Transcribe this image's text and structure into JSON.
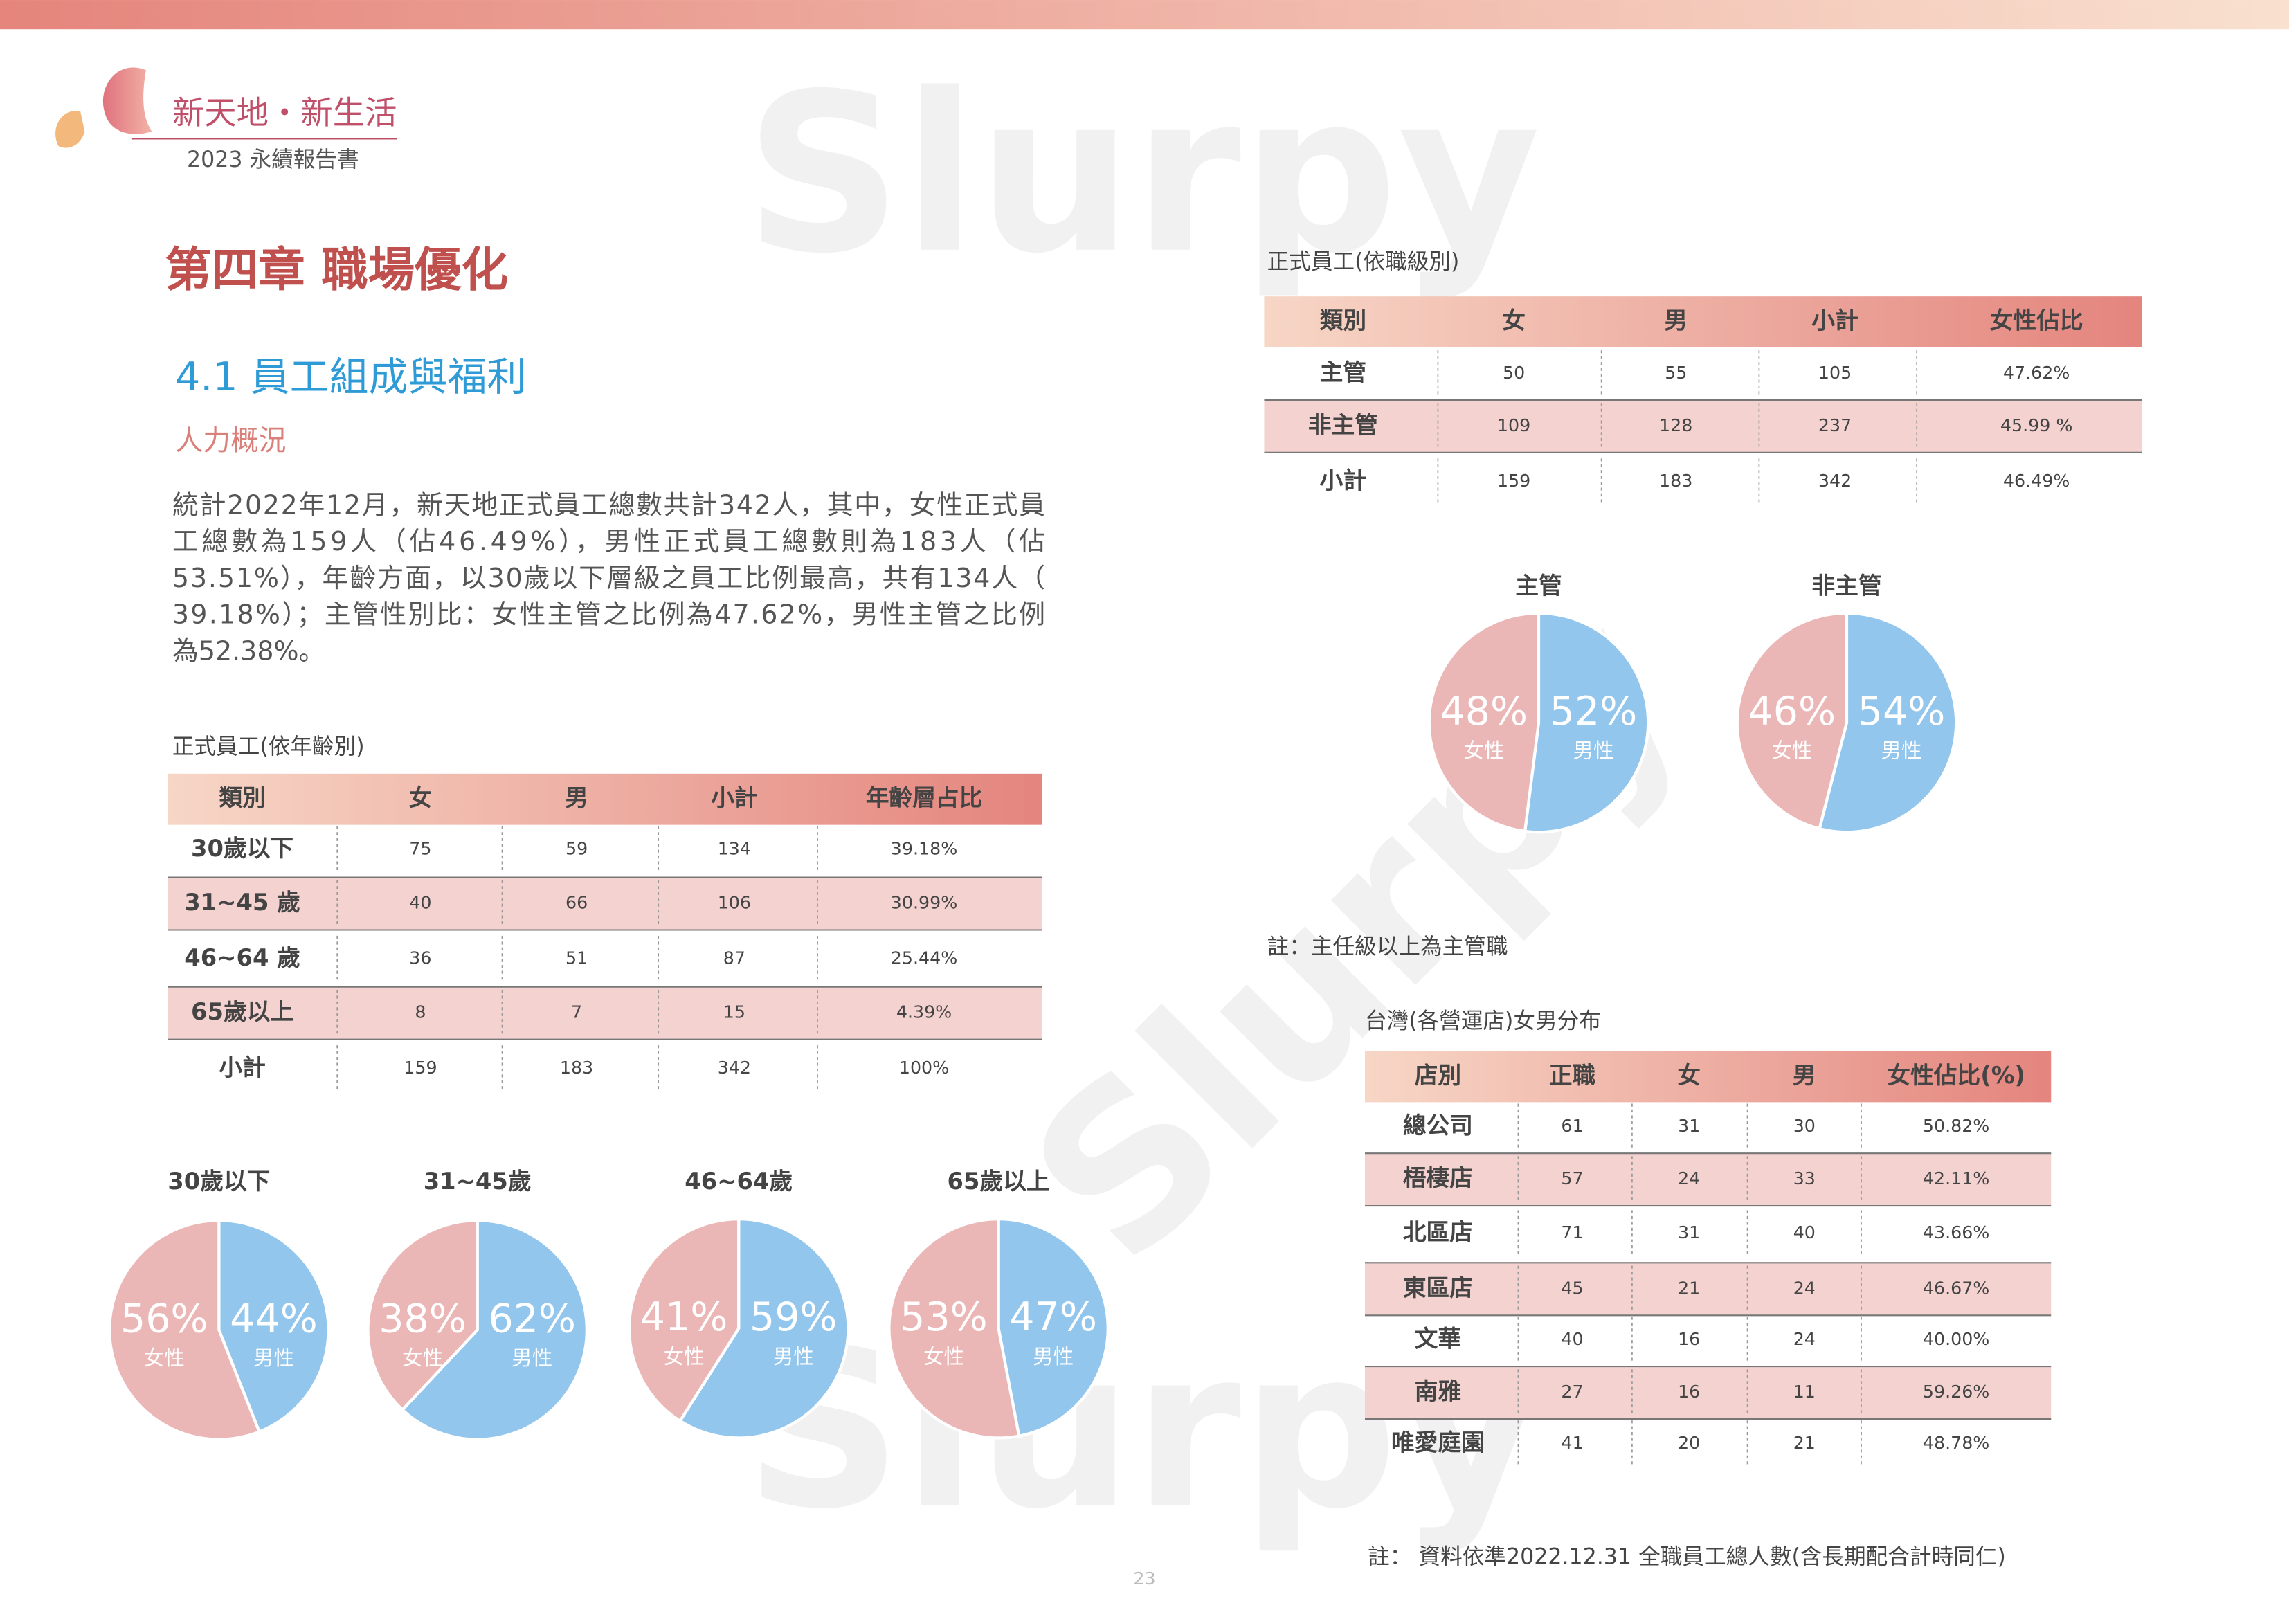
{
  "header": {
    "brand": "新天地・新生活",
    "report": "2023 永續報告書"
  },
  "chapter": "第四章 職場優化",
  "section": "4.1 員工組成與福利",
  "subsection": "人力概況",
  "paragraph_lines": [
    "統計2022年12月，新天地正式員工總數共計342人，其中，女性正式員",
    "工總數為159人（佔46.49%），男性正式員工總數則為183人（佔",
    "53.51%），年齡方面，以30歲以下層級之員工比例最高，共有134人（",
    "39.18%）；主管性別比：女性主管之比例為47.62%，男性主管之比例",
    "為52.38%。"
  ],
  "tables": [
    {
      "caption": "正式員工(依年齡別)",
      "header": [
        "類別",
        "女",
        "男",
        "小計",
        "年齡層占比"
      ],
      "rows": [
        [
          "30歲以下",
          "75",
          "59",
          "134",
          "39.18%"
        ],
        [
          "31~45 歲",
          "40",
          "66",
          "106",
          "30.99%"
        ],
        [
          "46~64 歲",
          "36",
          "51",
          "87",
          "25.44%"
        ],
        [
          "65歲以上",
          "8",
          "7",
          "15",
          "4.39%"
        ],
        [
          "小計",
          "159",
          "183",
          "342",
          "100%"
        ]
      ]
    },
    {
      "caption": "正式員工(依職級別)",
      "header": [
        "類別",
        "女",
        "男",
        "小計",
        "女性佔比"
      ],
      "rows": [
        [
          "主管",
          "50",
          "55",
          "105",
          "47.62%"
        ],
        [
          "非主管",
          "109",
          "128",
          "237",
          "45.99 %"
        ],
        [
          "小計",
          "159",
          "183",
          "342",
          "46.49%"
        ]
      ]
    },
    {
      "caption": "台灣(各營運店)女男分布",
      "header": [
        "店別",
        "正職",
        "女",
        "男",
        "女性佔比(%)"
      ],
      "rows": [
        [
          "總公司",
          "61",
          "31",
          "30",
          "50.82%"
        ],
        [
          "梧棲店",
          "57",
          "24",
          "33",
          "42.11%"
        ],
        [
          "北區店",
          "71",
          "31",
          "40",
          "43.66%"
        ],
        [
          "東區店",
          "45",
          "21",
          "24",
          "46.67%"
        ],
        [
          "文華",
          "40",
          "16",
          "24",
          "40.00%"
        ],
        [
          "南雅",
          "27",
          "16",
          "11",
          "59.26%"
        ],
        [
          "唯愛庭園",
          "41",
          "20",
          "21",
          "48.78%"
        ]
      ]
    }
  ],
  "pies": [
    {
      "title": "30歲以下",
      "slices": [
        {
          "name": "女性",
          "value": 56,
          "value_label": "56%",
          "color": "#ebb6b6"
        },
        {
          "name": "男性",
          "value": 44,
          "value_label": "44%",
          "color": "#92c6ec"
        }
      ]
    },
    {
      "title": "31~45歲",
      "slices": [
        {
          "name": "女性",
          "value": 38,
          "value_label": "38%",
          "color": "#ebb6b6"
        },
        {
          "name": "男性",
          "value": 62,
          "value_label": "62%",
          "color": "#92c6ec"
        }
      ]
    },
    {
      "title": "46~64歲",
      "slices": [
        {
          "name": "女性",
          "value": 41,
          "value_label": "41%",
          "color": "#ebb6b6"
        },
        {
          "name": "男性",
          "value": 59,
          "value_label": "59%",
          "color": "#92c6ec"
        }
      ]
    },
    {
      "title": "65歲以上",
      "slices": [
        {
          "name": "女性",
          "value": 53,
          "value_label": "53%",
          "color": "#ebb6b6"
        },
        {
          "name": "男性",
          "value": 47,
          "value_label": "47%",
          "color": "#92c6ec"
        }
      ]
    },
    {
      "title": "主管",
      "slices": [
        {
          "name": "女性",
          "value": 48,
          "value_label": "48%",
          "color": "#ebb6b6"
        },
        {
          "name": "男性",
          "value": 52,
          "value_label": "52%",
          "color": "#92c6ec"
        }
      ]
    },
    {
      "title": "非主管",
      "slices": [
        {
          "name": "女性",
          "value": 46,
          "value_label": "46%",
          "color": "#ebb6b6"
        },
        {
          "name": "男性",
          "value": 54,
          "value_label": "54%",
          "color": "#92c6ec"
        }
      ]
    }
  ],
  "notes": [
    "註：主任級以上為主管職",
    "註： 資料依準2022.12.31 全職員工總人數(含長期配合計時同仁)"
  ],
  "page_number": "23",
  "watermark": "Slurpy"
}
